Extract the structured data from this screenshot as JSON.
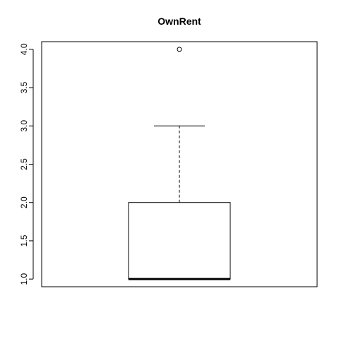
{
  "chart_data": {
    "type": "box",
    "title": "OwnRent",
    "xlabel": "",
    "ylabel": "",
    "ylim": [
      0.9,
      4.1
    ],
    "yticks": [
      1.0,
      1.5,
      2.0,
      2.5,
      3.0,
      3.5,
      4.0
    ],
    "ytick_labels": [
      "1.0",
      "1.5",
      "2.0",
      "2.5",
      "3.0",
      "3.5",
      "4.0"
    ],
    "grid": false,
    "series": [
      {
        "min": 1.0,
        "q1": 1.0,
        "median": 1.0,
        "q3": 2.0,
        "max": 3.0,
        "outliers": [
          4.0
        ]
      }
    ]
  }
}
